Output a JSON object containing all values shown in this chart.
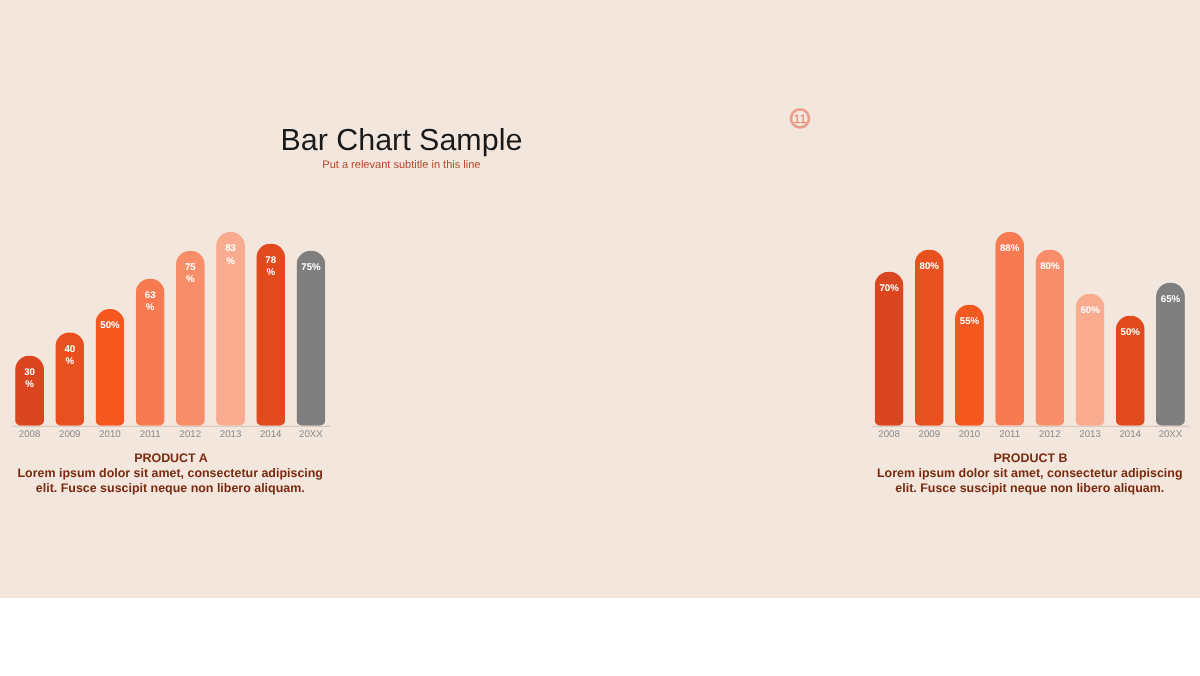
{
  "chart_data": [
    {
      "type": "bar",
      "title": "Bar Chart Sample",
      "subtitle": "Put a relevant subtitle in this line",
      "xlabel": "PRODUCT A",
      "categories": [
        "2008",
        "2009",
        "2010",
        "2011",
        "2012",
        "2013",
        "2014",
        "20XX"
      ],
      "values": [
        30,
        40,
        50,
        63,
        75,
        83,
        78,
        75
      ],
      "value_labels": [
        "30 %",
        "40 %",
        "50%",
        "63 %",
        "75 %",
        "83 %",
        "78 %",
        "75%"
      ],
      "colors": [
        "#d9461f",
        "#e8501f",
        "#f4581f",
        "#f77a50",
        "#f88d6a",
        "#f9ab90",
        "#e04a1c",
        "#7f7f7f"
      ],
      "tick_labels": "x",
      "annotations": [
        "Lorem ipsum dolor sit amet, consectetur adipiscing elit. Fusce suscipit neque non libero aliquam.",
        "11"
      ]
    },
    {
      "type": "bar",
      "xlabel": "PRODUCT B",
      "categories": [
        "2008",
        "2009",
        "2010",
        "2011",
        "2012",
        "2013",
        "2014",
        "20XX"
      ],
      "values": [
        70,
        80,
        55,
        88,
        80,
        60,
        50,
        65
      ],
      "value_labels": [
        "70%",
        "80%",
        "55%",
        "88%",
        "80%",
        "60%",
        "50%",
        "65%"
      ],
      "colors": [
        "#d9461f",
        "#e8501f",
        "#f4581f",
        "#f77a50",
        "#f88d6a",
        "#f9ab90",
        "#e04a1c",
        "#7f7f7f"
      ],
      "tick_labels": "x",
      "annotations": [
        "Lorem ipsum dolor sit amet, consectetur adipiscing elit. Fusce suscipit neque non libero aliquam."
      ]
    }
  ]
}
